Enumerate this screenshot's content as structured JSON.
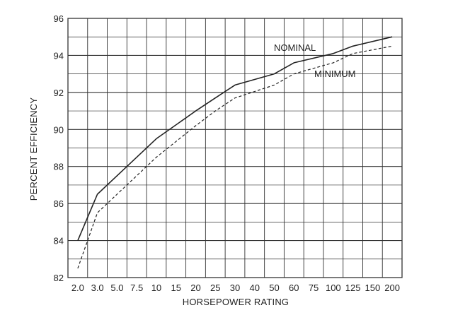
{
  "chart_data": {
    "type": "line",
    "title": "",
    "xlabel": "HORSEPOWER RATING",
    "ylabel": "PERCENT EFFICIENCY",
    "categories": [
      "2.0",
      "3.0",
      "5.0",
      "7.5",
      "10",
      "15",
      "20",
      "25",
      "30",
      "40",
      "50",
      "60",
      "75",
      "100",
      "125",
      "150",
      "200"
    ],
    "ylim": [
      82,
      96
    ],
    "yticks": [
      82,
      84,
      86,
      88,
      90,
      92,
      94,
      96
    ],
    "grid": true,
    "series": [
      {
        "name": "NOMINAL",
        "line_style": "solid",
        "values": [
          84.0,
          86.5,
          87.5,
          88.5,
          89.5,
          91.0,
          91.0,
          91.7,
          92.4,
          93.0,
          93.0,
          93.6,
          94.1,
          94.1,
          94.5,
          95.0,
          95.0
        ]
      },
      {
        "name": "MINIMUM",
        "line_style": "dashed",
        "values": [
          82.5,
          85.5,
          86.5,
          87.5,
          88.5,
          90.2,
          90.2,
          91.0,
          91.7,
          92.4,
          92.4,
          93.0,
          93.6,
          93.6,
          94.1,
          94.5,
          94.5
        ]
      }
    ],
    "colors": {
      "line": "#222222",
      "grid": "#333333",
      "text": "#222222"
    }
  }
}
